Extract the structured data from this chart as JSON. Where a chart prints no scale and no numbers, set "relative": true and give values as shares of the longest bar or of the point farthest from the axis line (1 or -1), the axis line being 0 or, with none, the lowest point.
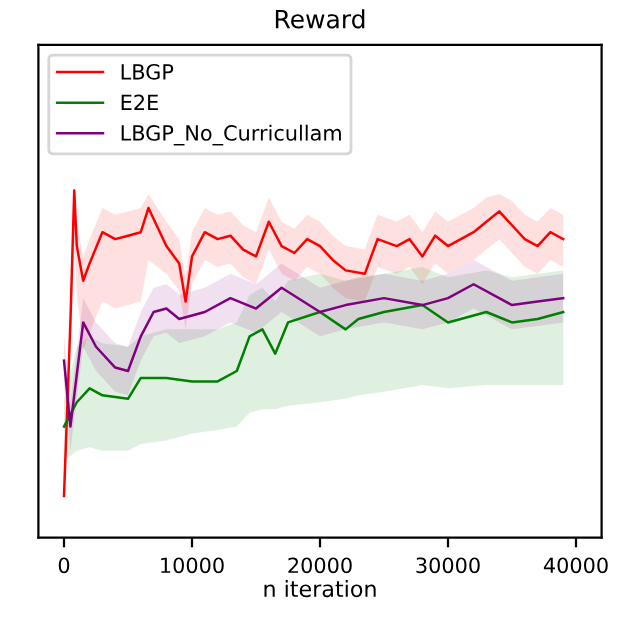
{
  "chart_data": {
    "type": "line",
    "title": "Reward",
    "xlabel": "n iteration",
    "relative": true,
    "legend": "top left",
    "grid": false,
    "xlim": [
      -2000,
      42000
    ],
    "xticks": [
      0,
      10000,
      20000,
      30000,
      40000
    ],
    "series": [
      {
        "name": "LBGP",
        "color": "#ff0000",
        "x": [
          0,
          500,
          800,
          1000,
          1500,
          2000,
          3000,
          4000,
          5000,
          6000,
          6600,
          8000,
          9000,
          9500,
          10000,
          11000,
          12000,
          13000,
          14000,
          15000,
          16000,
          17000,
          18000,
          19000,
          20000,
          21000,
          22000,
          23500,
          24500,
          26000,
          27000,
          28000,
          29000,
          30000,
          31000,
          32000,
          33000,
          34000,
          35000,
          36000,
          37000,
          38000,
          39000
        ],
        "values": [
          0.12,
          0.62,
          1.0,
          0.84,
          0.74,
          0.79,
          0.88,
          0.86,
          0.87,
          0.88,
          0.95,
          0.84,
          0.79,
          0.68,
          0.81,
          0.88,
          0.86,
          0.87,
          0.83,
          0.81,
          0.91,
          0.84,
          0.82,
          0.86,
          0.84,
          0.8,
          0.77,
          0.76,
          0.86,
          0.84,
          0.86,
          0.81,
          0.87,
          0.84,
          0.86,
          0.88,
          0.91,
          0.94,
          0.9,
          0.86,
          0.84,
          0.88,
          0.86
        ],
        "lower": [
          0.12,
          0.54,
          0.85,
          0.7,
          0.54,
          0.59,
          0.68,
          0.66,
          0.67,
          0.68,
          0.8,
          0.76,
          0.71,
          0.6,
          0.73,
          0.8,
          0.78,
          0.79,
          0.75,
          0.73,
          0.83,
          0.76,
          0.74,
          0.78,
          0.76,
          0.72,
          0.69,
          0.68,
          0.78,
          0.76,
          0.78,
          0.73,
          0.79,
          0.76,
          0.78,
          0.8,
          0.83,
          0.86,
          0.82,
          0.78,
          0.76,
          0.8,
          0.78
        ],
        "upper": [
          0.12,
          0.69,
          1.0,
          0.91,
          0.81,
          0.86,
          0.95,
          0.93,
          0.94,
          0.95,
          0.99,
          0.91,
          0.86,
          0.75,
          0.88,
          0.95,
          0.93,
          0.94,
          0.9,
          0.88,
          0.98,
          0.91,
          0.89,
          0.93,
          0.91,
          0.87,
          0.84,
          0.83,
          0.93,
          0.91,
          0.93,
          0.88,
          0.94,
          0.91,
          0.93,
          0.95,
          0.98,
          0.99,
          0.97,
          0.93,
          0.91,
          0.95,
          0.93
        ]
      },
      {
        "name": "E2E",
        "color": "#008000",
        "x": [
          0,
          1000,
          2000,
          3000,
          5000,
          6000,
          8000,
          10000,
          12000,
          13500,
          14500,
          15500,
          16500,
          17500,
          20000,
          22000,
          23000,
          25000,
          28000,
          30000,
          33000,
          35000,
          37000,
          39000
        ],
        "values": [
          0.32,
          0.39,
          0.43,
          0.41,
          0.4,
          0.46,
          0.46,
          0.45,
          0.45,
          0.48,
          0.58,
          0.6,
          0.53,
          0.62,
          0.65,
          0.6,
          0.63,
          0.65,
          0.67,
          0.62,
          0.65,
          0.62,
          0.63,
          0.65
        ],
        "lower": [
          0.22,
          0.25,
          0.26,
          0.25,
          0.25,
          0.27,
          0.28,
          0.3,
          0.31,
          0.32,
          0.36,
          0.37,
          0.37,
          0.38,
          0.39,
          0.4,
          0.41,
          0.42,
          0.44,
          0.43,
          0.44,
          0.44,
          0.44,
          0.44
        ],
        "upper": [
          0.4,
          0.55,
          0.58,
          0.56,
          0.55,
          0.58,
          0.6,
          0.6,
          0.6,
          0.62,
          0.7,
          0.72,
          0.68,
          0.74,
          0.76,
          0.74,
          0.75,
          0.76,
          0.78,
          0.75,
          0.77,
          0.75,
          0.76,
          0.77
        ]
      },
      {
        "name": "LBGP_No_Curricullam",
        "color": "#800080",
        "x": [
          0,
          500,
          1500,
          2500,
          4000,
          5000,
          6000,
          7000,
          8000,
          9000,
          11000,
          13000,
          15000,
          17000,
          20000,
          22000,
          25000,
          28000,
          30000,
          32000,
          35000,
          37000,
          39000
        ],
        "values": [
          0.51,
          0.32,
          0.62,
          0.55,
          0.49,
          0.48,
          0.58,
          0.65,
          0.66,
          0.63,
          0.65,
          0.69,
          0.66,
          0.72,
          0.65,
          0.67,
          0.69,
          0.67,
          0.69,
          0.73,
          0.67,
          0.68,
          0.69
        ],
        "lower": [
          0.44,
          0.25,
          0.55,
          0.48,
          0.42,
          0.41,
          0.51,
          0.58,
          0.59,
          0.56,
          0.58,
          0.62,
          0.59,
          0.65,
          0.58,
          0.6,
          0.62,
          0.6,
          0.62,
          0.66,
          0.6,
          0.61,
          0.62
        ],
        "upper": [
          0.58,
          0.39,
          0.69,
          0.62,
          0.56,
          0.55,
          0.65,
          0.72,
          0.73,
          0.7,
          0.72,
          0.76,
          0.73,
          0.79,
          0.72,
          0.74,
          0.76,
          0.74,
          0.76,
          0.8,
          0.74,
          0.75,
          0.76
        ]
      }
    ]
  }
}
